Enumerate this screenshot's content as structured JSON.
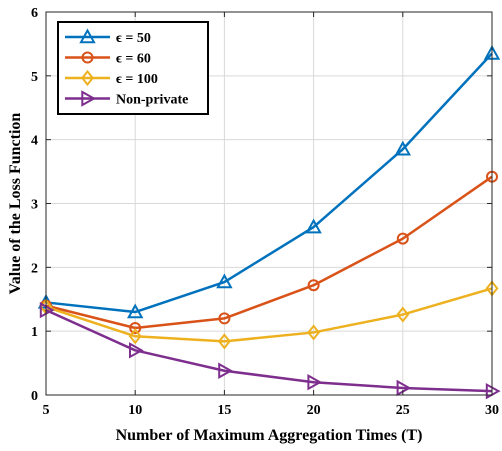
{
  "chart_data": {
    "type": "line",
    "xlabel": "Number of Maximum Aggregation Times (T)",
    "ylabel": "Value of the Loss Function",
    "xlim": [
      5,
      30
    ],
    "ylim": [
      0,
      6
    ],
    "x": [
      5,
      10,
      15,
      20,
      25,
      30
    ],
    "xticks": [
      "5",
      "10",
      "15",
      "20",
      "25",
      "30"
    ],
    "yticks": [
      "0",
      "1",
      "2",
      "3",
      "4",
      "5",
      "6"
    ],
    "grid": true,
    "legend": "top-left",
    "series": [
      {
        "name": "ϵ =  50",
        "color": "#0072BD",
        "marker": "triangle-up",
        "values": [
          1.45,
          1.3,
          1.77,
          2.63,
          3.85,
          5.35
        ]
      },
      {
        "name": "ϵ =  60",
        "color": "#D95319",
        "marker": "circle",
        "values": [
          1.4,
          1.05,
          1.2,
          1.72,
          2.45,
          3.42
        ]
      },
      {
        "name": "ϵ = 100",
        "color": "#EDB120",
        "marker": "diamond",
        "values": [
          1.38,
          0.92,
          0.84,
          0.98,
          1.26,
          1.67
        ]
      },
      {
        "name": "Non-private",
        "color": "#7E2F8E",
        "marker": "triangle-right",
        "values": [
          1.33,
          0.7,
          0.38,
          0.2,
          0.11,
          0.06
        ]
      }
    ]
  }
}
